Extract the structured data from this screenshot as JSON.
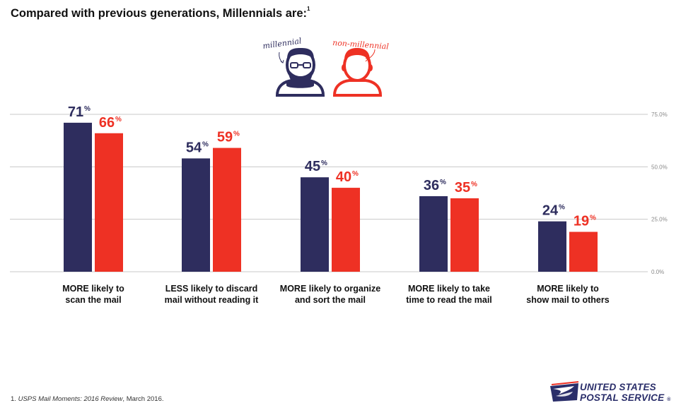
{
  "title": "Compared with previous generations, Millennials are:",
  "title_sup": "1",
  "legend": {
    "millennial_label": "millennial",
    "non_millennial_label": "non-millennial",
    "colors": {
      "millennial": "#2e2d5e",
      "non_millennial": "#ee3124"
    }
  },
  "chart_data": {
    "type": "bar",
    "categories": [
      [
        "MORE likely to",
        "scan the mail"
      ],
      [
        "LESS likely to discard",
        "mail without reading it"
      ],
      [
        "MORE likely to organize",
        "and sort the mail"
      ],
      [
        "MORE likely to take",
        "time to read the mail"
      ],
      [
        "MORE likely to",
        "show mail to others"
      ]
    ],
    "series": [
      {
        "name": "millennial",
        "values": [
          71,
          54,
          45,
          36,
          24
        ],
        "color": "#2e2d5e"
      },
      {
        "name": "non-millennial",
        "values": [
          66,
          59,
          40,
          35,
          19
        ],
        "color": "#ee3124"
      }
    ],
    "value_suffix": "%",
    "y_ticks": [
      "0.0%",
      "25.0%",
      "50.0%",
      "75.0%"
    ],
    "y_tick_values": [
      0,
      25,
      50,
      75
    ],
    "ylim": [
      0,
      75
    ],
    "grid": true
  },
  "footnote": {
    "number": "1.",
    "source": "USPS Mail Moments: 2016 Review",
    "date": ", March 2016."
  },
  "logo": {
    "line1": "UNITED STATES",
    "line2": "POSTAL SERVICE",
    "reg": "®"
  }
}
